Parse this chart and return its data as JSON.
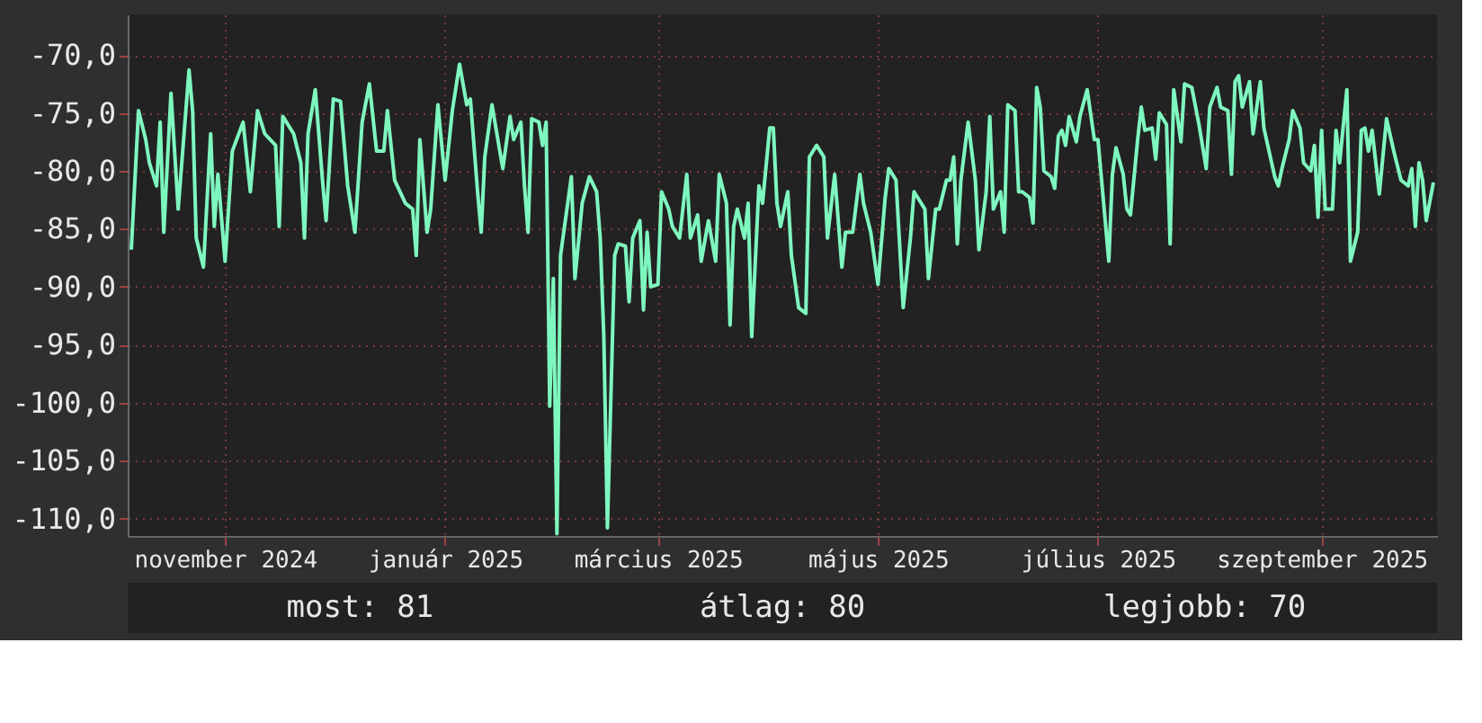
{
  "chart_data": {
    "type": "line",
    "x": [
      "2024-10-06",
      "2024-10-08",
      "2024-10-10",
      "2024-10-11",
      "2024-10-13",
      "2024-10-14",
      "2024-10-15",
      "2024-10-17",
      "2024-10-19",
      "2024-10-22",
      "2024-10-23",
      "2024-10-24",
      "2024-10-26",
      "2024-10-28",
      "2024-10-29",
      "2024-10-30",
      "2024-11-01",
      "2024-11-03",
      "2024-11-06",
      "2024-11-08",
      "2024-11-10",
      "2024-11-12",
      "2024-11-15",
      "2024-11-16",
      "2024-11-17",
      "2024-11-20",
      "2024-11-22",
      "2024-11-23",
      "2024-11-24",
      "2024-11-26",
      "2024-11-28",
      "2024-11-29",
      "2024-12-01",
      "2024-12-03",
      "2024-12-05",
      "2024-12-07",
      "2024-12-09",
      "2024-12-11",
      "2024-12-13",
      "2024-12-15",
      "2024-12-16",
      "2024-12-18",
      "2024-12-21",
      "2024-12-23",
      "2024-12-24",
      "2024-12-25",
      "2024-12-27",
      "2024-12-28",
      "2024-12-30",
      "2025-01-01",
      "2025-01-03",
      "2025-01-05",
      "2025-01-07",
      "2025-01-08",
      "2025-01-10",
      "2025-01-11",
      "2025-01-12",
      "2025-01-14",
      "2025-01-16",
      "2025-01-17",
      "2025-01-19",
      "2025-01-20",
      "2025-01-22",
      "2025-01-23",
      "2025-01-24",
      "2025-01-25",
      "2025-01-27",
      "2025-01-28",
      "2025-01-29",
      "2025-01-30",
      "2025-01-31",
      "2025-02-01",
      "2025-02-02",
      "2025-02-05",
      "2025-02-06",
      "2025-02-08",
      "2025-02-10",
      "2025-02-12",
      "2025-02-13",
      "2025-02-14",
      "2025-02-15",
      "2025-02-17",
      "2025-02-18",
      "2025-02-20",
      "2025-02-21",
      "2025-02-22",
      "2025-02-24",
      "2025-02-25",
      "2025-02-26",
      "2025-02-27",
      "2025-03-01",
      "2025-03-02",
      "2025-03-04",
      "2025-03-05",
      "2025-03-07",
      "2025-03-09",
      "2025-03-10",
      "2025-03-12",
      "2025-03-13",
      "2025-03-15",
      "2025-03-17",
      "2025-03-18",
      "2025-03-20",
      "2025-03-21",
      "2025-03-22",
      "2025-03-23",
      "2025-03-25",
      "2025-03-26",
      "2025-03-27",
      "2025-03-29",
      "2025-03-30",
      "2025-04-01",
      "2025-04-02",
      "2025-04-03",
      "2025-04-04",
      "2025-04-06",
      "2025-04-07",
      "2025-04-09",
      "2025-04-11",
      "2025-04-12",
      "2025-04-14",
      "2025-04-16",
      "2025-04-17",
      "2025-04-19",
      "2025-04-21",
      "2025-04-22",
      "2025-04-24",
      "2025-04-26",
      "2025-04-27",
      "2025-04-29",
      "2025-05-01",
      "2025-05-03",
      "2025-05-04",
      "2025-05-06",
      "2025-05-08",
      "2025-05-10",
      "2025-05-11",
      "2025-05-14",
      "2025-05-15",
      "2025-05-17",
      "2025-05-18",
      "2025-05-20",
      "2025-05-21",
      "2025-05-22",
      "2025-05-23",
      "2025-05-24",
      "2025-05-26",
      "2025-05-28",
      "2025-05-29",
      "2025-05-31",
      "2025-06-01",
      "2025-06-02",
      "2025-06-04",
      "2025-06-05",
      "2025-06-06",
      "2025-06-08",
      "2025-06-09",
      "2025-06-10",
      "2025-06-12",
      "2025-06-13",
      "2025-06-14",
      "2025-06-15",
      "2025-06-16",
      "2025-06-18",
      "2025-06-19",
      "2025-06-20",
      "2025-06-21",
      "2025-06-22",
      "2025-06-23",
      "2025-06-25",
      "2025-06-26",
      "2025-06-28",
      "2025-06-30",
      "2025-07-01",
      "2025-07-02",
      "2025-07-04",
      "2025-07-05",
      "2025-07-06",
      "2025-07-08",
      "2025-07-09",
      "2025-07-10",
      "2025-07-12",
      "2025-07-13",
      "2025-07-14",
      "2025-07-16",
      "2025-07-17",
      "2025-07-18",
      "2025-07-20",
      "2025-07-21",
      "2025-07-22",
      "2025-07-24",
      "2025-07-25",
      "2025-07-27",
      "2025-07-29",
      "2025-07-31",
      "2025-08-01",
      "2025-08-03",
      "2025-08-04",
      "2025-08-06",
      "2025-08-07",
      "2025-08-08",
      "2025-08-09",
      "2025-08-10",
      "2025-08-12",
      "2025-08-13",
      "2025-08-15",
      "2025-08-16",
      "2025-08-19",
      "2025-08-20",
      "2025-08-21",
      "2025-08-23",
      "2025-08-24",
      "2025-08-26",
      "2025-08-27",
      "2025-08-29",
      "2025-08-30",
      "2025-08-31",
      "2025-09-01",
      "2025-09-02",
      "2025-09-04",
      "2025-09-05",
      "2025-09-06",
      "2025-09-08",
      "2025-09-09",
      "2025-09-11",
      "2025-09-12",
      "2025-09-13",
      "2025-09-14",
      "2025-09-15",
      "2025-09-17",
      "2025-09-19",
      "2025-09-21",
      "2025-09-23",
      "2025-09-25",
      "2025-09-26",
      "2025-09-27",
      "2025-09-28",
      "2025-09-29",
      "2025-09-30",
      "2025-10-02"
    ],
    "series": [
      {
        "color": "#7ef7bf",
        "values": [
          -86.8,
          -74.8,
          -77.3,
          -79.3,
          -81.3,
          -75.8,
          -85.3,
          -73.3,
          -83.3,
          -71.3,
          -74.8,
          -85.8,
          -88.3,
          -76.8,
          -84.8,
          -80.3,
          -87.8,
          -78.3,
          -75.8,
          -81.8,
          -74.8,
          -76.8,
          -77.8,
          -84.8,
          -75.3,
          -76.8,
          -79.3,
          -85.8,
          -76.8,
          -73.0,
          -80.8,
          -84.3,
          -73.8,
          -74.0,
          -81.3,
          -85.3,
          -75.8,
          -72.5,
          -78.3,
          -78.3,
          -74.8,
          -80.8,
          -82.8,
          -83.3,
          -87.3,
          -77.3,
          -85.3,
          -83.3,
          -74.3,
          -80.8,
          -74.8,
          -70.8,
          -74.3,
          -73.8,
          -81.8,
          -85.3,
          -78.8,
          -74.3,
          -78.0,
          -79.8,
          -75.3,
          -77.3,
          -75.8,
          -81.3,
          -85.3,
          -75.5,
          -75.8,
          -77.8,
          -75.8,
          -100.3,
          -89.3,
          -111.3,
          -87.3,
          -80.5,
          -89.3,
          -82.8,
          -80.5,
          -81.8,
          -85.8,
          -94.3,
          -110.8,
          -87.3,
          -86.3,
          -86.5,
          -91.3,
          -85.8,
          -84.3,
          -92.0,
          -85.3,
          -90.0,
          -89.8,
          -81.8,
          -83.3,
          -84.8,
          -85.8,
          -80.3,
          -85.8,
          -83.8,
          -87.8,
          -84.3,
          -87.8,
          -80.3,
          -82.8,
          -93.3,
          -84.8,
          -83.3,
          -85.8,
          -82.8,
          -94.3,
          -81.3,
          -82.8,
          -76.3,
          -76.3,
          -82.8,
          -84.8,
          -81.8,
          -87.3,
          -91.8,
          -92.3,
          -78.8,
          -77.8,
          -78.8,
          -85.8,
          -80.3,
          -88.3,
          -85.3,
          -85.3,
          -80.3,
          -82.8,
          -85.3,
          -89.8,
          -82.3,
          -79.8,
          -80.8,
          -91.8,
          -85.8,
          -81.8,
          -83.3,
          -89.3,
          -83.3,
          -83.3,
          -80.8,
          -80.8,
          -78.8,
          -86.3,
          -80.8,
          -75.8,
          -80.8,
          -86.8,
          -81.8,
          -75.3,
          -83.3,
          -81.8,
          -85.3,
          -74.3,
          -74.8,
          -81.8,
          -81.8,
          -82.3,
          -84.5,
          -72.8,
          -74.5,
          -80.0,
          -80.5,
          -81.5,
          -77.0,
          -76.5,
          -77.8,
          -75.3,
          -77.5,
          -75.3,
          -73.0,
          -77.3,
          -77.3,
          -80.8,
          -87.8,
          -80.3,
          -78.0,
          -80.3,
          -83.3,
          -83.8,
          -77.3,
          -74.5,
          -76.5,
          -76.3,
          -79.0,
          -75.0,
          -76.0,
          -86.3,
          -73.0,
          -77.5,
          -72.5,
          -72.8,
          -76.0,
          -79.8,
          -74.5,
          -72.8,
          -74.5,
          -74.8,
          -80.3,
          -72.3,
          -71.8,
          -74.5,
          -72.3,
          -76.8,
          -72.3,
          -76.3,
          -80.5,
          -81.3,
          -79.8,
          -77.3,
          -74.8,
          -76.3,
          -79.3,
          -80.0,
          -77.8,
          -84.0,
          -76.5,
          -83.3,
          -83.3,
          -76.5,
          -79.3,
          -73.0,
          -87.8,
          -85.3,
          -76.5,
          -76.3,
          -78.3,
          -76.5,
          -82.0,
          -75.5,
          -78.3,
          -80.8,
          -81.3,
          -79.8,
          -84.8,
          -79.3,
          -80.8,
          -84.3,
          -81.0
        ]
      }
    ],
    "xlim": [
      "2024-10-05",
      "2025-10-03"
    ],
    "xticks": [
      {
        "value": "2024-11-01",
        "label": "november 2024"
      },
      {
        "value": "2025-01-01",
        "label": "január 2025"
      },
      {
        "value": "2025-03-01",
        "label": "március 2025"
      },
      {
        "value": "2025-05-01",
        "label": "május 2025"
      },
      {
        "value": "2025-07-01",
        "label": "július 2025"
      },
      {
        "value": "2025-09-01",
        "label": "szeptember 2025"
      }
    ],
    "ylim": [
      -111.5,
      -66.5
    ],
    "yticks": [
      {
        "value": -70,
        "label": "-70,0"
      },
      {
        "value": -75,
        "label": "-75,0"
      },
      {
        "value": -80,
        "label": "-80,0"
      },
      {
        "value": -85,
        "label": "-85,0"
      },
      {
        "value": -90,
        "label": "-90,0"
      },
      {
        "value": -95,
        "label": "-95,0"
      },
      {
        "value": -100,
        "label": "-100,0"
      },
      {
        "value": -105,
        "label": "-105,0"
      },
      {
        "value": -110,
        "label": "-110,0"
      }
    ],
    "grid": true,
    "line_style": "solid",
    "annotations": [
      "most: 81",
      "átlag: 80",
      "legjobb: 70"
    ]
  }
}
